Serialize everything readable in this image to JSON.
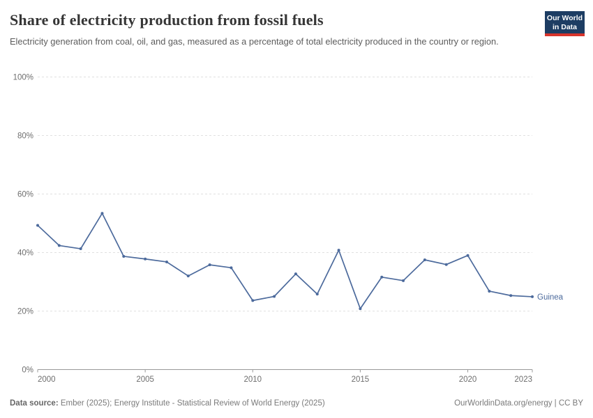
{
  "header": {
    "title": "Share of electricity production from fossil fuels",
    "subtitle": "Electricity generation from coal, oil, and gas, measured as a percentage of total electricity produced in the country or region."
  },
  "logo": {
    "line1": "Our World",
    "line2": "in Data",
    "bg_color": "#1d3d63",
    "bar_color": "#d7342c"
  },
  "chart_data": {
    "type": "line",
    "title": "Share of electricity production from fossil fuels",
    "xlabel": "",
    "ylabel": "",
    "ylim": [
      0,
      100
    ],
    "grid": "horizontal-dashed",
    "legend_position": "end-of-line",
    "y_ticks": [
      {
        "v": 0,
        "label": "0%"
      },
      {
        "v": 20,
        "label": "20%"
      },
      {
        "v": 40,
        "label": "40%"
      },
      {
        "v": 60,
        "label": "60%"
      },
      {
        "v": 80,
        "label": "80%"
      },
      {
        "v": 100,
        "label": "100%"
      }
    ],
    "x_ticks": [
      {
        "v": 2000,
        "label": "2000"
      },
      {
        "v": 2005,
        "label": "2005"
      },
      {
        "v": 2010,
        "label": "2010"
      },
      {
        "v": 2015,
        "label": "2015"
      },
      {
        "v": 2020,
        "label": "2020"
      },
      {
        "v": 2023,
        "label": "2023"
      }
    ],
    "series": [
      {
        "name": "Guinea",
        "color": "#4c6a9c",
        "x": [
          2000,
          2001,
          2002,
          2003,
          2004,
          2005,
          2006,
          2007,
          2008,
          2009,
          2010,
          2011,
          2012,
          2013,
          2014,
          2015,
          2016,
          2017,
          2018,
          2019,
          2020,
          2021,
          2022,
          2023
        ],
        "values": [
          49.3,
          42.4,
          41.3,
          53.4,
          38.7,
          37.8,
          36.8,
          32.0,
          35.8,
          34.8,
          23.6,
          25.0,
          32.7,
          25.8,
          40.8,
          20.8,
          31.6,
          30.4,
          37.5,
          35.9,
          39.0,
          26.8,
          25.3,
          24.9
        ]
      }
    ],
    "colors": {
      "gridline": "#e0e0e0",
      "axis_line": "#999999",
      "tick_label": "#6e6e6e"
    }
  },
  "footer": {
    "datasource_label": "Data source:",
    "datasource_text": " Ember (2025); Energy Institute - Statistical Review of World Energy (2025)",
    "credit": "OurWorldinData.org/energy | CC BY"
  }
}
